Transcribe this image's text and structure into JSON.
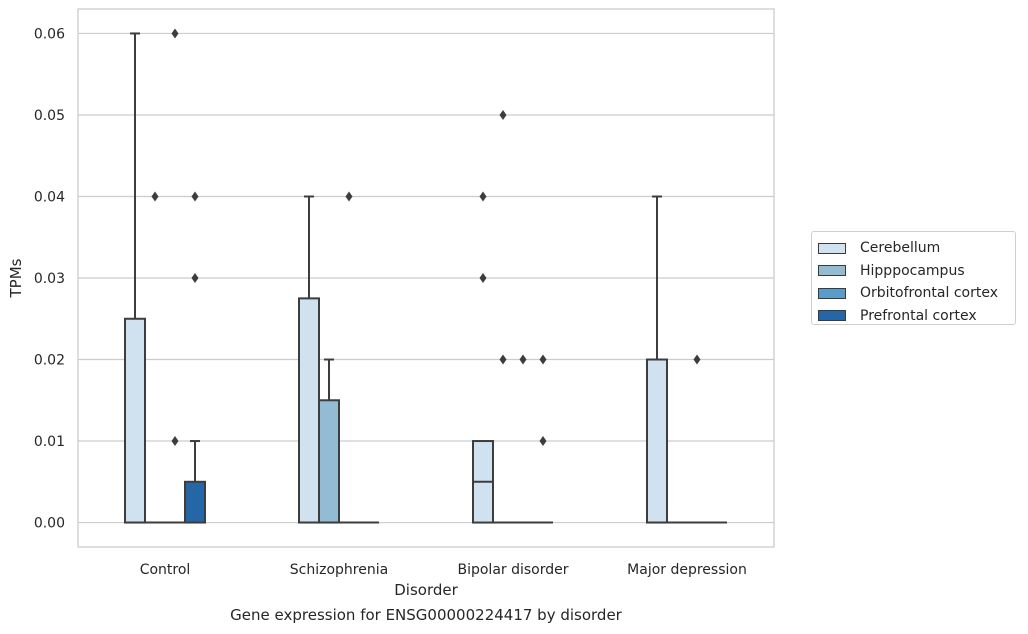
{
  "chart_data": {
    "type": "box",
    "title": "",
    "caption": "Gene expression for ENSG00000224417 by disorder",
    "xlabel": "Disorder",
    "ylabel": "TPMs",
    "ylim": [
      -0.003,
      0.063
    ],
    "yticks": [
      "0.00",
      "0.01",
      "0.02",
      "0.03",
      "0.04",
      "0.05",
      "0.06"
    ],
    "ytick_values": [
      0,
      0.01,
      0.02,
      0.03,
      0.04,
      0.05,
      0.06
    ],
    "grid": true,
    "legend_position": "outside-right",
    "categories": [
      "Control",
      "Schizophrenia",
      "Bipolar disorder",
      "Major depression"
    ],
    "series": [
      {
        "name": "Cerebellum",
        "color": "#d0e1f0",
        "boxes": [
          {
            "q1": 0,
            "median": 0,
            "q3": 0.025,
            "whisker_low": 0,
            "whisker_high": 0.06,
            "outliers": []
          },
          {
            "q1": 0,
            "median": 0,
            "q3": 0.0275,
            "whisker_low": 0,
            "whisker_high": 0.04,
            "outliers": []
          },
          {
            "q1": 0,
            "median": 0.005,
            "q3": 0.01,
            "whisker_low": 0,
            "whisker_high": 0.01,
            "outliers": [
              0.04,
              0.03
            ]
          },
          {
            "q1": 0,
            "median": 0,
            "q3": 0.02,
            "whisker_low": 0,
            "whisker_high": 0.04,
            "outliers": []
          }
        ]
      },
      {
        "name": "Hipppocampus",
        "color": "#93bcd4",
        "boxes": [
          {
            "q1": 0,
            "median": 0,
            "q3": 0,
            "whisker_low": 0,
            "whisker_high": 0,
            "outliers": [
              0.04
            ]
          },
          {
            "q1": 0,
            "median": 0,
            "q3": 0.015,
            "whisker_low": 0,
            "whisker_high": 0.02,
            "outliers": []
          },
          {
            "q1": 0,
            "median": 0,
            "q3": 0,
            "whisker_low": 0,
            "whisker_high": 0,
            "outliers": [
              0.05,
              0.02
            ]
          },
          {
            "q1": 0,
            "median": 0,
            "q3": 0,
            "whisker_low": 0,
            "whisker_high": 0,
            "outliers": []
          }
        ]
      },
      {
        "name": "Orbitofrontal cortex",
        "color": "#5a9bc9",
        "boxes": [
          {
            "q1": 0,
            "median": 0,
            "q3": 0,
            "whisker_low": 0,
            "whisker_high": 0,
            "outliers": [
              0.06,
              0.01
            ]
          },
          {
            "q1": 0,
            "median": 0,
            "q3": 0,
            "whisker_low": 0,
            "whisker_high": 0,
            "outliers": [
              0.04
            ]
          },
          {
            "q1": 0,
            "median": 0,
            "q3": 0,
            "whisker_low": 0,
            "whisker_high": 0,
            "outliers": [
              0.02
            ]
          },
          {
            "q1": 0,
            "median": 0,
            "q3": 0,
            "whisker_low": 0,
            "whisker_high": 0,
            "outliers": [
              0.02
            ]
          }
        ]
      },
      {
        "name": "Prefrontal cortex",
        "color": "#2566a7",
        "boxes": [
          {
            "q1": 0,
            "median": 0,
            "q3": 0.005,
            "whisker_low": 0,
            "whisker_high": 0.01,
            "outliers": [
              0.04,
              0.03
            ]
          },
          {
            "q1": 0,
            "median": 0,
            "q3": 0,
            "whisker_low": 0,
            "whisker_high": 0,
            "outliers": []
          },
          {
            "q1": 0,
            "median": 0,
            "q3": 0,
            "whisker_low": 0,
            "whisker_high": 0,
            "outliers": [
              0.02,
              0.01
            ]
          },
          {
            "q1": 0,
            "median": 0,
            "q3": 0,
            "whisker_low": 0,
            "whisker_high": 0,
            "outliers": []
          }
        ]
      }
    ]
  }
}
